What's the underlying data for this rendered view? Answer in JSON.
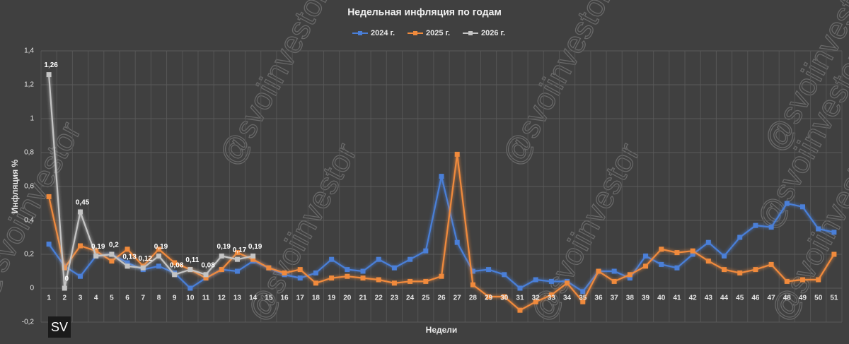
{
  "chart_data": {
    "type": "line",
    "title": "Недельная инфляция по годам",
    "y_label": "Инфляция %",
    "x_label": "Недели",
    "watermark": "@svoiinvestor",
    "logo": "SV",
    "categories": [
      "1",
      "2",
      "3",
      "4",
      "5",
      "6",
      "7",
      "8",
      "9",
      "10",
      "11",
      "12",
      "13",
      "14",
      "15",
      "16",
      "17",
      "18",
      "19",
      "20",
      "21",
      "22",
      "23",
      "24",
      "25",
      "26",
      "27",
      "28",
      "29",
      "30",
      "31",
      "32",
      "33",
      "34",
      "35",
      "36",
      "37",
      "38",
      "39",
      "40",
      "41",
      "42",
      "43",
      "44",
      "45",
      "46",
      "47",
      "48",
      "49",
      "50",
      "51"
    ],
    "series": [
      {
        "name": "2024 г.",
        "color": "#4a7fd8",
        "values": [
          0.26,
          0.13,
          0.07,
          0.19,
          0.2,
          0.15,
          0.11,
          0.13,
          0.09,
          0.0,
          0.06,
          0.11,
          0.1,
          0.16,
          0.12,
          0.08,
          0.06,
          0.09,
          0.17,
          0.11,
          0.1,
          0.17,
          0.12,
          0.17,
          0.22,
          0.66,
          0.27,
          0.1,
          0.11,
          0.08,
          0.0,
          0.05,
          0.04,
          0.04,
          -0.02,
          0.1,
          0.1,
          0.06,
          0.19,
          0.14,
          0.12,
          0.2,
          0.27,
          0.19,
          0.3,
          0.37,
          0.36,
          0.5,
          0.48,
          0.35,
          0.33
        ]
      },
      {
        "name": "2025 г.",
        "color": "#f08a3c",
        "values": [
          0.54,
          0.12,
          0.25,
          0.22,
          0.16,
          0.23,
          0.13,
          0.23,
          0.15,
          0.11,
          0.06,
          0.11,
          0.21,
          0.17,
          0.12,
          0.09,
          0.11,
          0.03,
          0.06,
          0.07,
          0.06,
          0.05,
          0.03,
          0.04,
          0.04,
          0.07,
          0.79,
          0.02,
          -0.05,
          -0.05,
          -0.13,
          -0.08,
          -0.04,
          0.03,
          -0.08,
          0.1,
          0.04,
          0.08,
          0.13,
          0.23,
          0.21,
          0.22,
          0.16,
          0.11,
          0.09,
          0.11,
          0.14,
          0.04,
          0.05,
          0.05,
          0.2
        ]
      },
      {
        "name": "2026 г.",
        "color": "#c4c4c4",
        "values": [
          1.26,
          0,
          0.45,
          0.19,
          0.2,
          0.13,
          0.12,
          0.19,
          0.08,
          0.11,
          0.08,
          0.19,
          0.17,
          0.19,
          null,
          null,
          null,
          null,
          null,
          null,
          null,
          null,
          null,
          null,
          null,
          null,
          null,
          null,
          null,
          null,
          null,
          null,
          null,
          null,
          null,
          null,
          null,
          null,
          null,
          null,
          null,
          null,
          null,
          null,
          null,
          null,
          null,
          null,
          null,
          null,
          null
        ],
        "value_labels": [
          "1,26",
          "0",
          "0,45",
          "0,19",
          "0,2",
          "0,13",
          "0,12",
          "0,19",
          "0,08",
          "0,11",
          "0,08",
          "0,19",
          "0,17",
          "0,19",
          null,
          null,
          null,
          null,
          null,
          null,
          null,
          null,
          null,
          null,
          null,
          null,
          null,
          null,
          null,
          null,
          null,
          null,
          null,
          null,
          null,
          null,
          null,
          null,
          null,
          null,
          null,
          null,
          null,
          null,
          null,
          null,
          null,
          null,
          null,
          null,
          null
        ]
      }
    ],
    "ylim": [
      -0.2,
      1.4
    ],
    "yticks": [
      {
        "value": -0.2,
        "label": "-0,2"
      },
      0,
      {
        "value": 0.2,
        "label": "0,2"
      },
      {
        "value": 0.4,
        "label": "0,4"
      },
      {
        "value": 0.6,
        "label": "0,6"
      },
      {
        "value": 0.8,
        "label": "0,8"
      },
      1,
      {
        "value": 1.2,
        "label": "1,2"
      },
      {
        "value": 1.4,
        "label": "1,4"
      }
    ],
    "grid": true
  }
}
